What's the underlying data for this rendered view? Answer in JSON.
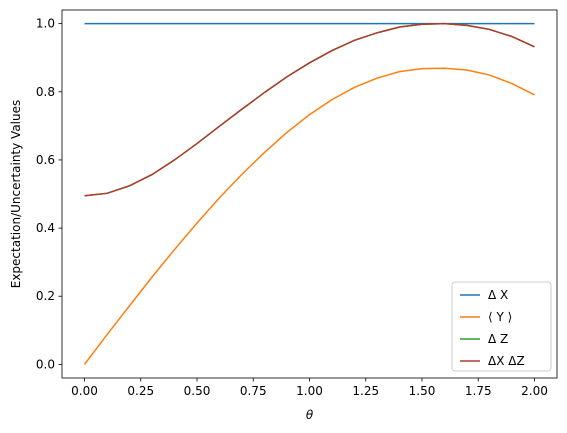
{
  "chart_data": {
    "type": "line",
    "title": "",
    "xlabel": "θ",
    "ylabel": "Expectation/Uncertainty Values",
    "xlim": [
      -0.1,
      2.1
    ],
    "ylim": [
      -0.04,
      1.04
    ],
    "xticks": [
      0.0,
      0.25,
      0.5,
      0.75,
      1.0,
      1.25,
      1.5,
      1.75,
      2.0
    ],
    "xtick_labels": [
      "0.00",
      "0.25",
      "0.50",
      "0.75",
      "1.00",
      "1.25",
      "1.50",
      "1.75",
      "2.00"
    ],
    "yticks": [
      0.0,
      0.2,
      0.4,
      0.6,
      0.8,
      1.0
    ],
    "ytick_labels": [
      "0.0",
      "0.2",
      "0.4",
      "0.6",
      "0.8",
      "1.0"
    ],
    "grid": false,
    "legend_position": "lower-right",
    "x": [
      0.0,
      0.1,
      0.2,
      0.3,
      0.4,
      0.5,
      0.6,
      0.7,
      0.8,
      0.9,
      1.0,
      1.1,
      1.2,
      1.3,
      1.4,
      1.5,
      1.6,
      1.7,
      1.8,
      1.9,
      2.0
    ],
    "series": [
      {
        "name": "Δ X",
        "color": "#1f77b4",
        "values": [
          1.0,
          1.0,
          1.0,
          1.0,
          1.0,
          1.0,
          1.0,
          1.0,
          1.0,
          1.0,
          1.0,
          1.0,
          1.0,
          1.0,
          1.0,
          1.0,
          1.0,
          1.0,
          1.0,
          1.0,
          1.0
        ]
      },
      {
        "name": "⟨ Y ⟩",
        "color": "#ff7f0e",
        "values": [
          0.0,
          0.087,
          0.172,
          0.256,
          0.337,
          0.415,
          0.489,
          0.558,
          0.622,
          0.681,
          0.733,
          0.777,
          0.813,
          0.84,
          0.859,
          0.868,
          0.869,
          0.864,
          0.849,
          0.824,
          0.791
        ]
      },
      {
        "name": "Δ Z",
        "color": "#2ca02c",
        "values": [
          0.495,
          0.502,
          0.524,
          0.557,
          0.6,
          0.648,
          0.699,
          0.749,
          0.798,
          0.844,
          0.885,
          0.921,
          0.951,
          0.973,
          0.99,
          0.998,
          1.0,
          0.995,
          0.983,
          0.962,
          0.932
        ]
      },
      {
        "name": "ΔX ΔZ",
        "color": "#b03a2e",
        "values": [
          0.495,
          0.502,
          0.524,
          0.557,
          0.6,
          0.648,
          0.699,
          0.749,
          0.798,
          0.844,
          0.885,
          0.921,
          0.951,
          0.973,
          0.99,
          0.998,
          1.0,
          0.995,
          0.983,
          0.962,
          0.932
        ]
      }
    ]
  }
}
